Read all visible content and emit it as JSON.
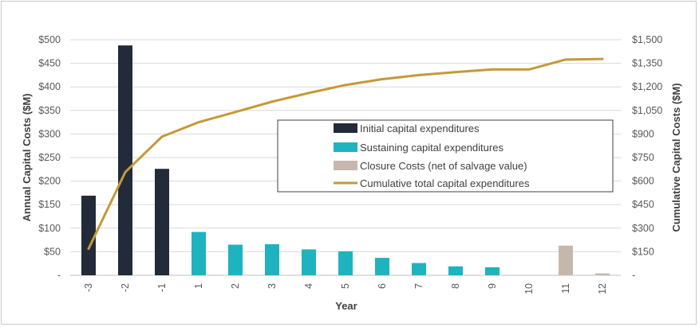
{
  "chart_data": {
    "type": "bar",
    "title": "",
    "xlabel": "Year",
    "ylabel": "Annual Capital Costs ($M)",
    "y2label": "Cumulative Capital Costs ($M)",
    "categories": [
      "-3",
      "-2",
      "-1",
      "1",
      "2",
      "3",
      "4",
      "5",
      "6",
      "7",
      "8",
      "9",
      "10",
      "11",
      "12"
    ],
    "ylim": [
      0,
      500
    ],
    "y2lim": [
      0,
      1500
    ],
    "yticks": [
      "-",
      "$50",
      "$100",
      "$150",
      "$200",
      "$250",
      "$300",
      "$350",
      "$400",
      "$450",
      "$500"
    ],
    "y2ticks": [
      "-",
      "$150",
      "$300",
      "$450",
      "$600",
      "$750",
      "$900",
      "$1,050",
      "$1,200",
      "$1,350",
      "$1,500"
    ],
    "grid": true,
    "legend_position": "center-right",
    "series": [
      {
        "name": "Initial capital expenditures",
        "kind": "bar",
        "color": "#232b3a",
        "values": [
          169,
          488,
          226,
          0,
          0,
          0,
          0,
          0,
          0,
          0,
          0,
          0,
          0,
          0,
          0
        ]
      },
      {
        "name": "Sustaining capital expenditures",
        "kind": "bar",
        "color": "#1fb3bf",
        "values": [
          0,
          0,
          0,
          92,
          65,
          66,
          55,
          51,
          37,
          26,
          19,
          17,
          0,
          0,
          0
        ]
      },
      {
        "name": "Closure Costs (net of salvage value)",
        "kind": "bar",
        "color": "#c6b7ad",
        "values": [
          0,
          0,
          0,
          0,
          0,
          0,
          0,
          0,
          0,
          0,
          0,
          0,
          0,
          63,
          4
        ]
      },
      {
        "name": "Cumulative total capital expenditures",
        "kind": "line",
        "axis": "right",
        "color": "#c49a38",
        "values": [
          169,
          657,
          883,
          975,
          1040,
          1106,
          1161,
          1212,
          1249,
          1275,
          1294,
          1311,
          1311,
          1374,
          1378
        ]
      }
    ]
  }
}
